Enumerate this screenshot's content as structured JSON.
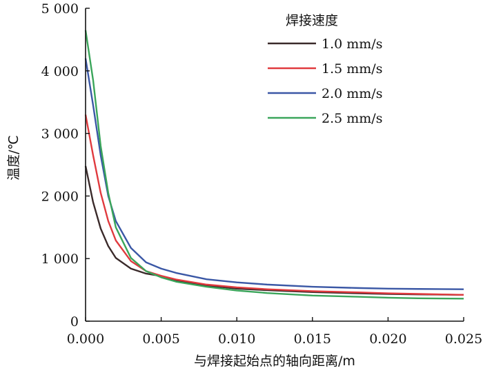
{
  "chart_data": {
    "type": "line",
    "xlabel": "与焊接起始点的轴向距离/m",
    "ylabel": "温度/℃",
    "xlim": [
      0,
      0.025
    ],
    "ylim": [
      0,
      5000
    ],
    "x_ticks": [
      {
        "value": 0,
        "label": "0.000"
      },
      {
        "value": 0.005,
        "label": "0.005"
      },
      {
        "value": 0.01,
        "label": "0.010"
      },
      {
        "value": 0.015,
        "label": "0.015"
      },
      {
        "value": 0.02,
        "label": "0.020"
      },
      {
        "value": 0.025,
        "label": "0.025"
      }
    ],
    "y_ticks": [
      {
        "value": 0,
        "label": "0"
      },
      {
        "value": 1000,
        "label": "1 000"
      },
      {
        "value": 2000,
        "label": "2 000"
      },
      {
        "value": 3000,
        "label": "3 000"
      },
      {
        "value": 4000,
        "label": "4 000"
      },
      {
        "value": 5000,
        "label": "5 000"
      }
    ],
    "grid": false,
    "legend": {
      "title": "焊接速度",
      "position": "top-right"
    },
    "series": [
      {
        "name": "1.0 mm/s",
        "color": "#3a2a2a",
        "x": [
          0,
          0.0005,
          0.001,
          0.0015,
          0.002,
          0.003,
          0.004,
          0.005,
          0.006,
          0.008,
          0.01,
          0.012,
          0.015,
          0.018,
          0.02,
          0.022,
          0.025
        ],
        "y": [
          2480,
          1900,
          1480,
          1200,
          1010,
          840,
          760,
          720,
          650,
          570,
          520,
          495,
          465,
          445,
          435,
          428,
          420
        ]
      },
      {
        "name": "1.5 mm/s",
        "color": "#e03a3e",
        "x": [
          0,
          0.0005,
          0.001,
          0.0015,
          0.002,
          0.003,
          0.004,
          0.005,
          0.006,
          0.008,
          0.01,
          0.012,
          0.015,
          0.018,
          0.02,
          0.022,
          0.025
        ],
        "y": [
          3300,
          2650,
          2050,
          1600,
          1290,
          960,
          800,
          725,
          665,
          585,
          540,
          510,
          480,
          460,
          445,
          435,
          420
        ]
      },
      {
        "name": "2.0 mm/s",
        "color": "#3a57a5",
        "x": [
          0,
          0.0005,
          0.001,
          0.0015,
          0.002,
          0.003,
          0.004,
          0.005,
          0.006,
          0.008,
          0.01,
          0.012,
          0.015,
          0.018,
          0.02,
          0.022,
          0.025
        ],
        "y": [
          4200,
          3450,
          2650,
          2000,
          1600,
          1170,
          940,
          840,
          770,
          670,
          620,
          585,
          550,
          530,
          520,
          515,
          510
        ]
      },
      {
        "name": "2.5 mm/s",
        "color": "#3aa55a",
        "x": [
          0,
          0.0005,
          0.001,
          0.0015,
          0.002,
          0.003,
          0.004,
          0.005,
          0.006,
          0.008,
          0.01,
          0.012,
          0.015,
          0.018,
          0.02,
          0.022,
          0.025
        ],
        "y": [
          4650,
          3850,
          2800,
          2050,
          1500,
          1010,
          800,
          700,
          630,
          550,
          490,
          450,
          410,
          390,
          375,
          365,
          360
        ]
      }
    ]
  }
}
